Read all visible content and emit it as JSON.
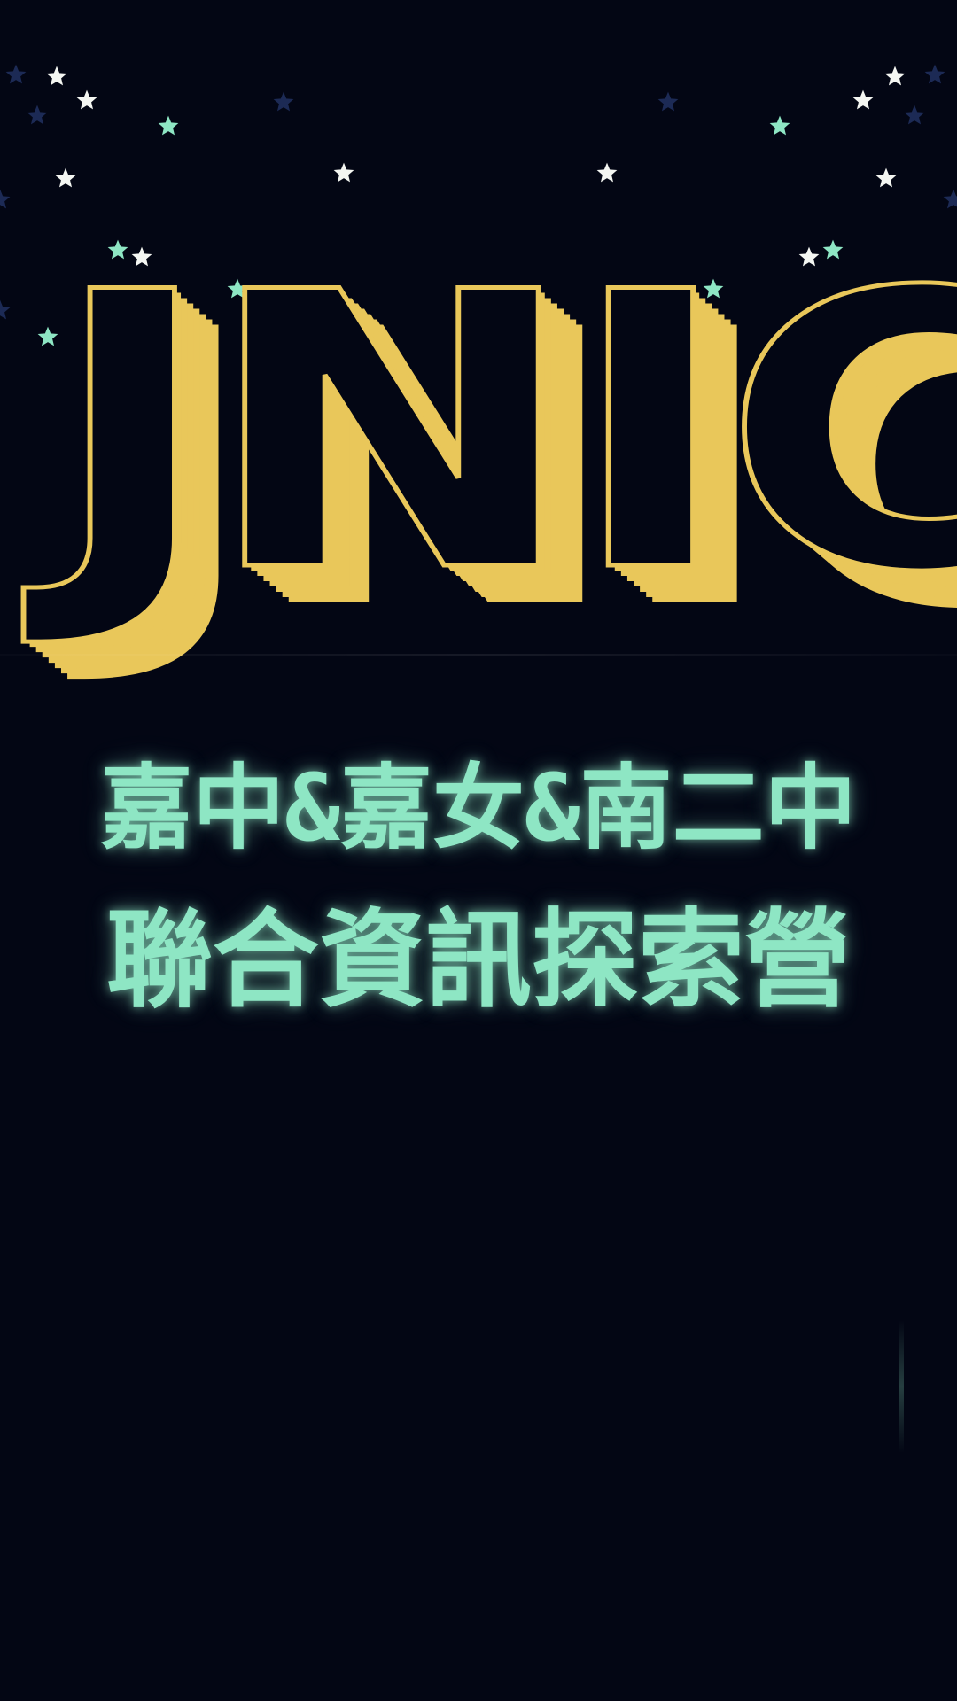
{
  "colors": {
    "background": "#030614",
    "logo_yellow": "#e9c75a",
    "title_mint": "#8ee6c4",
    "star_white": "#f4f6f2",
    "star_mint": "#8ee6c4",
    "star_navy": "#1c2a55"
  },
  "header": {
    "logo_text": "JNIC"
  },
  "main": {
    "title_line1": "嘉中&嘉女&南二中",
    "title_line2": "聯合資訊探索營"
  },
  "decor": {
    "star_icon": "star-icon"
  }
}
